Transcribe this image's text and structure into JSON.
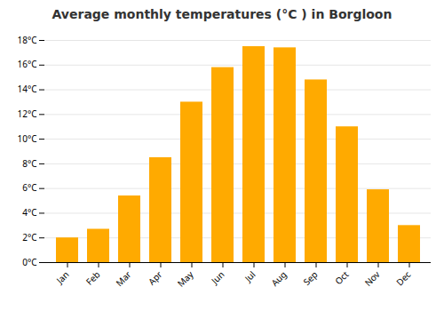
{
  "chart_data": {
    "type": "bar",
    "title": "Average monthly temperatures (°C ) in Borgloon",
    "categories": [
      "Jan",
      "Feb",
      "Mar",
      "Apr",
      "May",
      "Jun",
      "Jul",
      "Aug",
      "Sep",
      "Oct",
      "Nov",
      "Dec"
    ],
    "values": [
      2.0,
      2.7,
      5.4,
      8.5,
      13.0,
      15.8,
      17.5,
      17.4,
      14.8,
      11.0,
      5.9,
      3.0
    ],
    "color": "#FFAA00",
    "ylim": [
      0,
      18
    ],
    "yticks": [
      {
        "value": 0,
        "label": "0°C"
      },
      {
        "value": 2,
        "label": "2°C"
      },
      {
        "value": 4,
        "label": "4°C"
      },
      {
        "value": 6,
        "label": "6°C"
      },
      {
        "value": 8,
        "label": "8°C"
      },
      {
        "value": 10,
        "label": "10°C"
      },
      {
        "value": 12,
        "label": "12°C"
      },
      {
        "value": 14,
        "label": "14°C"
      },
      {
        "value": 16,
        "label": "16°C"
      },
      {
        "value": 18,
        "label": "18°C"
      }
    ],
    "grid": true
  }
}
